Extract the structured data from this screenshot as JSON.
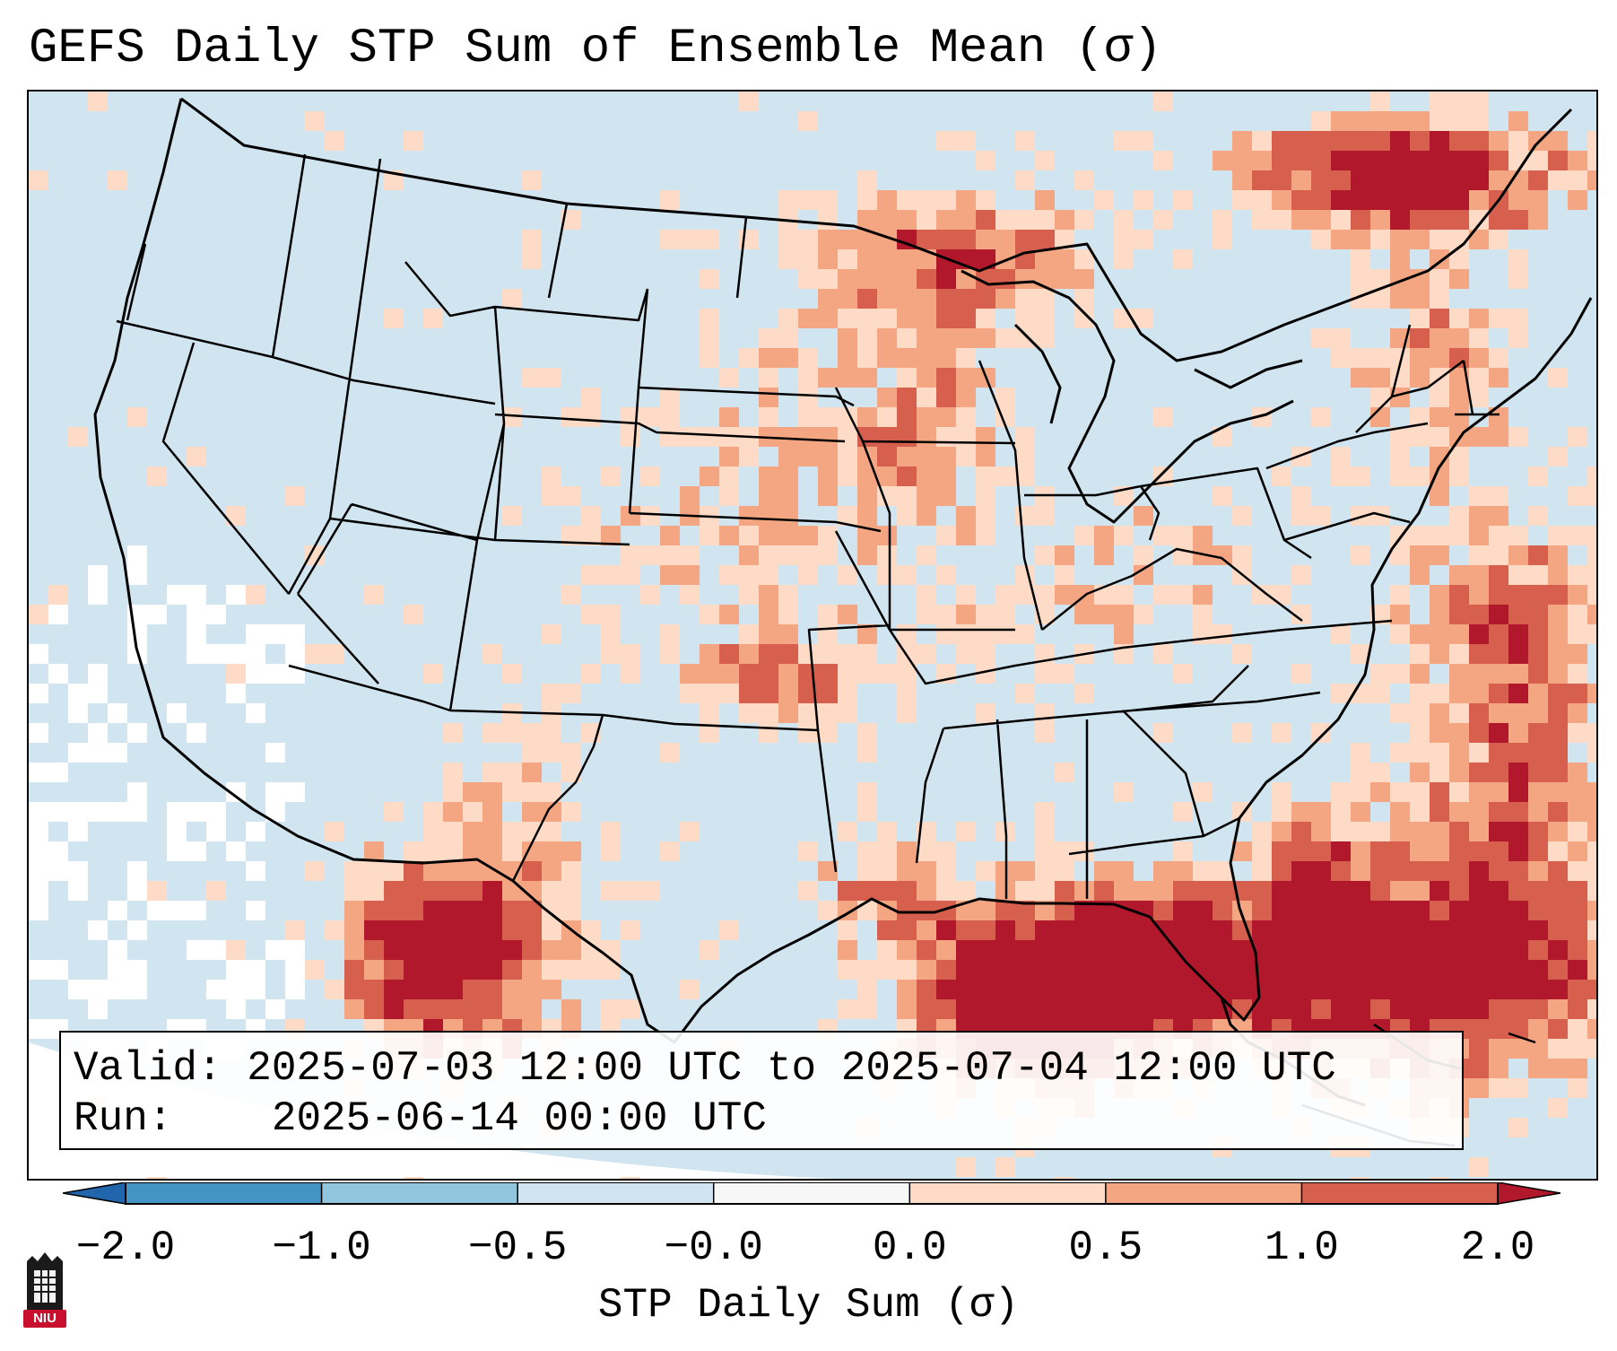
{
  "title": "GEFS Daily STP Sum of Ensemble Mean (σ)",
  "info": {
    "valid_label": "Valid:",
    "valid_value": "2025-07-03 12:00 UTC to 2025-07-04 12:00 UTC",
    "run_label": "Run:",
    "run_value": "2025-06-14 00:00 UTC"
  },
  "colorbar": {
    "label": "STP Daily Sum (σ)",
    "ticks": [
      "−2.0",
      "−1.0",
      "−0.5",
      "−0.0",
      "0.0",
      "0.5",
      "1.0",
      "2.0"
    ],
    "bins": [
      {
        "range": "< -2.0",
        "color": "#2166ac"
      },
      {
        "range": "-2.0 to -1.0",
        "color": "#4393c3"
      },
      {
        "range": "-1.0 to -0.5",
        "color": "#92c5de"
      },
      {
        "range": "-0.5 to -0.0",
        "color": "#d1e5f0"
      },
      {
        "range": "-0.0 to 0.0",
        "color": "#f7f7f7"
      },
      {
        "range": "0.0 to 0.5",
        "color": "#fddbc7"
      },
      {
        "range": "0.5 to 1.0",
        "color": "#f4a582"
      },
      {
        "range": "1.0 to 2.0",
        "color": "#d6604d"
      },
      {
        "range": "> 2.0",
        "color": "#b2182b"
      }
    ]
  },
  "map": {
    "region": "Contiguous United States",
    "background_color": "#d1e5f0",
    "coastline_color": "#000000"
  },
  "logo": {
    "text": "NIU",
    "color": "#c8102e"
  }
}
